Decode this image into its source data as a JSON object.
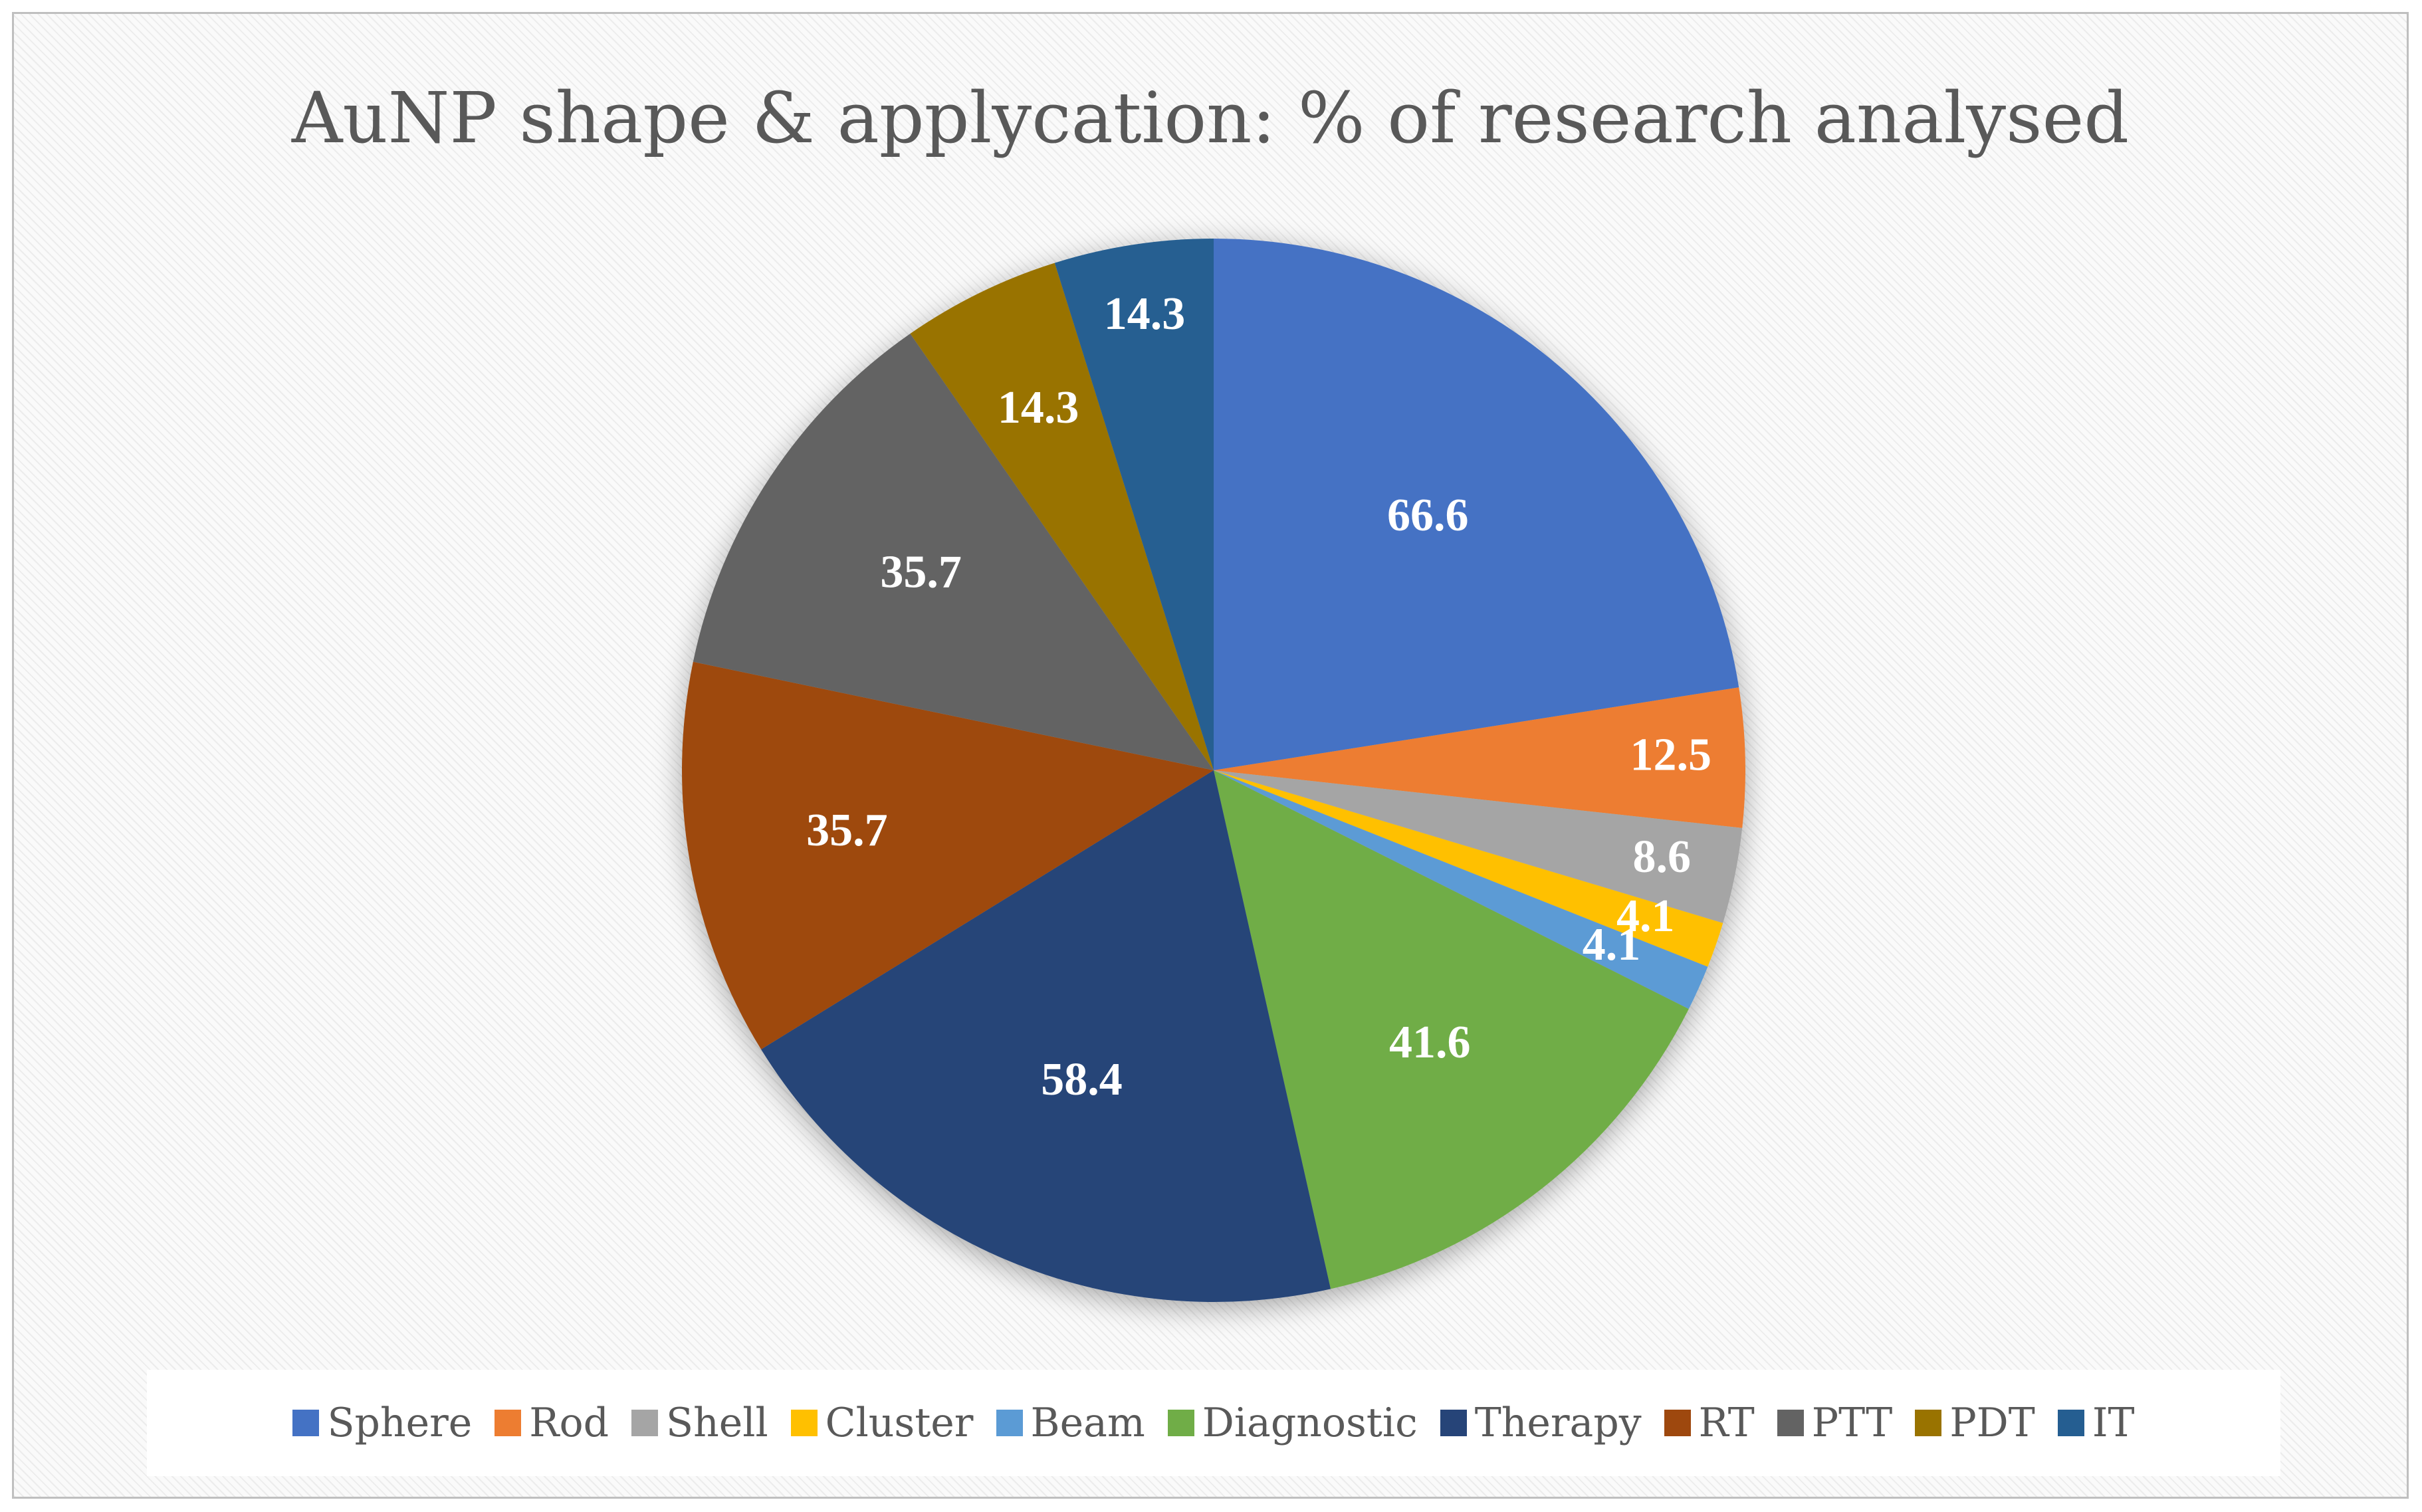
{
  "chart_data": {
    "type": "pie",
    "title": "AuNP shape & applycation: % of research analysed",
    "categories": [
      "Sphere",
      "Rod",
      "Shell",
      "Cluster",
      "Beam",
      "Diagnostic",
      "Therapy",
      "RT",
      "PTT",
      "PDT",
      "IT"
    ],
    "values": [
      66.6,
      12.5,
      8.6,
      4.1,
      4.1,
      41.6,
      58.4,
      35.7,
      35.7,
      14.3,
      14.3
    ],
    "labels": [
      "66.6",
      "12.5",
      "8.6",
      "4.1",
      "4.1",
      "41.6",
      "58.4",
      "35.7",
      "35.7",
      "14.3",
      "14.3"
    ],
    "colors": [
      "#4472C4",
      "#ED7D31",
      "#A5A5A5",
      "#FFC000",
      "#5B9BD5",
      "#70AD47",
      "#264478",
      "#9E480E",
      "#636363",
      "#997300",
      "#255E91"
    ],
    "legend_position": "bottom",
    "start_angle": "12 o'clock",
    "direction": "clockwise"
  }
}
